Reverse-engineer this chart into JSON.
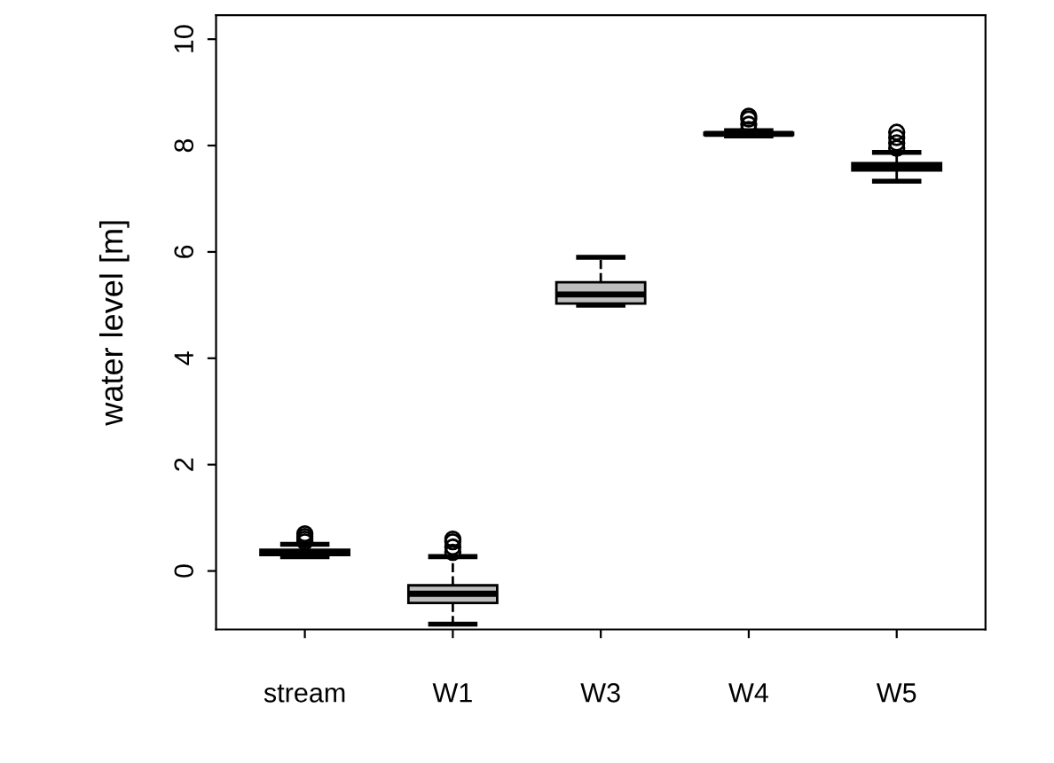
{
  "chart_data": {
    "type": "box",
    "ylabel": "water level [m]",
    "categories": [
      "stream",
      "W1",
      "W3",
      "W4",
      "W5"
    ],
    "boxes": [
      {
        "low": 0.27,
        "q1": 0.3,
        "median": 0.35,
        "q3": 0.4,
        "high": 0.5,
        "outliers": [
          0.55,
          0.6,
          0.65,
          0.7
        ]
      },
      {
        "low": -1.0,
        "q1": -0.6,
        "median": -0.43,
        "q3": -0.27,
        "high": 0.27,
        "outliers": [
          0.35,
          0.45,
          0.55,
          0.6
        ]
      },
      {
        "low": 5.0,
        "q1": 5.03,
        "median": 5.2,
        "q3": 5.43,
        "high": 5.9
      },
      {
        "low": 8.18,
        "q1": 8.2,
        "median": 8.22,
        "q3": 8.24,
        "high": 8.28,
        "outliers": [
          8.3,
          8.4,
          8.5,
          8.55
        ]
      },
      {
        "low": 7.33,
        "q1": 7.53,
        "median": 7.6,
        "q3": 7.67,
        "high": 7.87,
        "outliers": [
          7.95,
          8.05,
          8.15,
          8.25
        ]
      }
    ],
    "color": "#bebebe",
    "ylim": [
      -1.1,
      10.45
    ],
    "yticks": [
      0,
      2,
      4,
      6,
      8,
      10
    ],
    "grid": false,
    "legend": false
  }
}
